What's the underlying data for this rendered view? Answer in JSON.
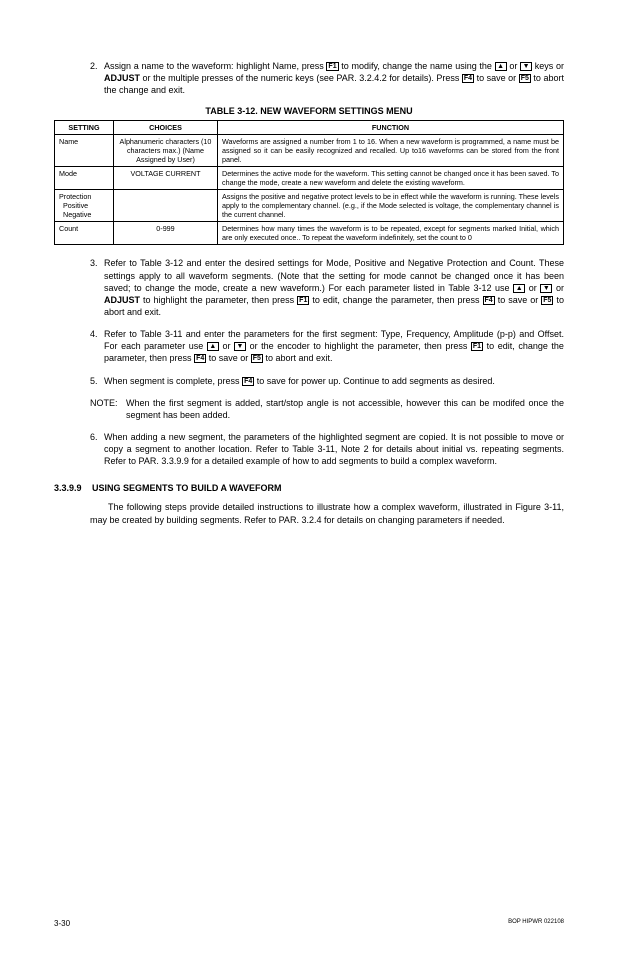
{
  "item2_pre": "Assign a name to the waveform: highlight Name, press ",
  "item2_mid1": " to modify, change the name using the ",
  "item2_mid2": " or ",
  "item2_mid3": " keys or ",
  "item2_adjust": "ADJUST",
  "item2_mid4": " or the multiple presses of the numeric keys (see PAR. 3.2.4.2 for details). Press ",
  "item2_mid5": " to save or ",
  "item2_end": " to abort the change and exit.",
  "key_f1": "F1",
  "key_f4": "F4",
  "key_f5": "F5",
  "key_up": "▲",
  "key_dn": "▼",
  "table_title": "TABLE 3-12.  NEW WAVEFORM SETTINGS MENU",
  "th_setting": "SETTING",
  "th_choices": "CHOICES",
  "th_function": "FUNCTION",
  "row1_s": "Name",
  "row1_c": "Alphanumeric characters (10 characters max.) (Name Assigned by User)",
  "row1_f": "Waveforms are assigned a number from 1 to 16. When a new waveform is programmed, a name must be assigned so it can be easily recognized and recalled. Up to16 waveforms can be stored from the front panel.",
  "row2_s": "Mode",
  "row2_c": "VOLTAGE CURRENT",
  "row2_f": "Determines the active mode for the waveform. This setting cannot be changed once it has been saved. To change the mode, create a new waveform and delete the existing waveform.",
  "row3_s1": "Protection",
  "row3_s2": "Positive",
  "row3_s3": "Negative",
  "row3_f": "Assigns the positive and negative protect levels to be in effect while the waveform is running. These levels apply to the complementary channel. (e.g., if the Mode selected is voltage, the complementary channel is the current channel.",
  "row4_s": "Count",
  "row4_c": "0-999",
  "row4_f": "Determines how many times the waveform is to be repeated, except for segments marked Initial, which are only executed once.. To repeat the waveform indefinitely, set the count to 0",
  "item3_a": "Refer to Table 3-12 and enter the desired settings for Mode, Positive and Negative Protection and Count. These settings apply to all waveform segments. (Note that the setting for mode cannot be changed once it has been saved; to change the mode, create a new waveform.) For each parameter listed in Table 3-12 use ",
  "item3_b": " or ",
  "item3_c": " or ",
  "item3_adjust": "ADJUST",
  "item3_d": " to highlight the parameter, then press ",
  "item3_e": " to edit, change the parameter, then press ",
  "item3_f": " to save or ",
  "item3_g": " to abort and exit.",
  "item4_a": "Refer to Table 3-11 and enter the parameters for the first segment: Type, Frequency, Amplitude (p-p) and Offset. For each parameter use ",
  "item4_b": " or ",
  "item4_c": " or the encoder to highlight the parameter, then press ",
  "item4_d": " to edit, change the parameter, then press ",
  "item4_e": " to save or ",
  "item4_f": " to abort and exit.",
  "item5_a": "When segment is complete, press ",
  "item5_b": " to save for power up. Continue to add segments as desired.",
  "note_label": "NOTE:",
  "note_body": "When the first segment is added, start/stop angle is not accessible, however this can be modifed once the segment has been added.",
  "item6": "When adding a new segment, the parameters of the highlighted segment are copied. It is not possible to move or copy a segment to another location. Refer to Table 3-11, Note 2 for details about initial vs. repeating segments. Refer to PAR. 3.3.9.9 for a detailed example of how to add segments to build a complex waveform.",
  "sub_num": "3.3.9.9",
  "sub_title": "USING SEGMENTS TO BUILD A WAVEFORM",
  "para1": "The following steps provide detailed instructions to illustrate how a complex waveform, illustrated in Figure 3-11, may be created by building segments. Refer to PAR. 3.2.4 for details on changing parameters if needed.",
  "foot_left": "3-30",
  "foot_right": "BOP HIPWR 022108"
}
